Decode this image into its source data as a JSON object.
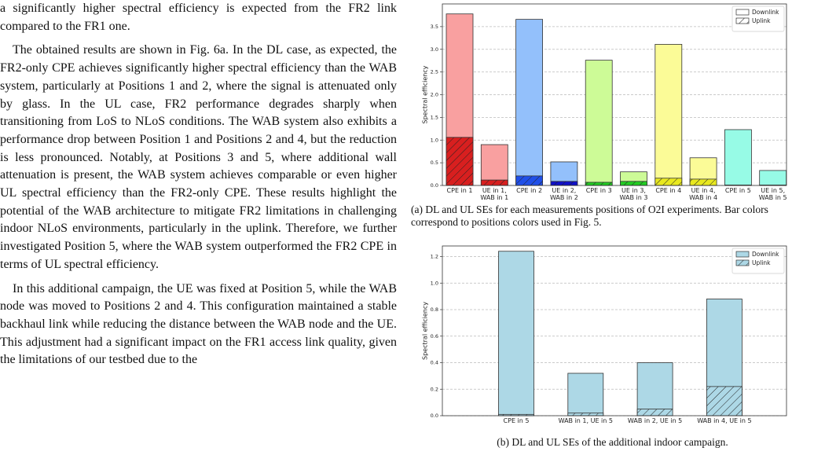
{
  "body": {
    "paragraphs": [
      "a significantly higher spectral efficiency is expected from the FR2 link compared to the FR1 one.",
      "The obtained results are shown in Fig. 6a. In the DL case, as expected, the FR2-only CPE achieves significantly higher spectral efficiency than the WAB system, particularly at Positions 1 and 2, where the signal is attenuated only by glass. In the UL case, FR2 performance degrades sharply when transitioning from LoS to NLoS conditions. The WAB system also exhibits a performance drop between Position 1 and Positions 2 and 4, but the reduction is less pronounced. Notably, at Positions 3 and 5, where additional wall attenuation is present, the WAB system achieves comparable or even higher UL spectral efficiency than the FR2-only CPE. These results highlight the potential of the WAB architecture to mitigate FR2 limitations in challenging indoor NLoS environments, particularly in the uplink. Therefore, we further investigated Position 5, where the WAB system outperformed the FR2 CPE in terms of UL spectral efficiency.",
      "In this additional campaign, the UE was fixed at Position 5, while the WAB node was moved to Positions 2 and 4. This configuration maintained a stable backhaul link while reducing the distance between the WAB node and the UE. This adjustment had a significant impact on the FR1 access link quality, given the limitations of our testbed due to the"
    ]
  },
  "chart_data": [
    {
      "type": "bar",
      "ylabel": "Spectral efficiency",
      "caption": "(a) DL and UL SEs for each measurements positions of O2I experiments. Bar colors correspond to positions colors used in Fig. 5.",
      "categories": [
        "CPE in 1",
        "UE in 1, WAB in 1",
        "CPE in 2",
        "UE in 2, WAB in 2",
        "CPE in 3",
        "UE in 3, WAB in 3",
        "CPE in 4",
        "UE in 4, WAB in 4",
        "CPE in 5",
        "UE in 5, WAB in 5"
      ],
      "series": [
        {
          "name": "Downlink",
          "colors": [
            "#f9a0a0",
            "#f9a0a0",
            "#93c0fb",
            "#93c0fb",
            "#cdfb97",
            "#cdfb97",
            "#fbfb97",
            "#fbfb97",
            "#97fbe6",
            "#97fbe6"
          ],
          "values": [
            3.78,
            0.9,
            3.66,
            0.52,
            2.76,
            0.3,
            3.11,
            0.61,
            1.23,
            0.33
          ]
        },
        {
          "name": "Uplink",
          "hatch": true,
          "colors": [
            "#d81f1f",
            "#d81f1f",
            "#1f4fe8",
            "#1010c8",
            "#22cc22",
            "#22cc22",
            "#e8e81f",
            "#e8e81f",
            "#22ccaa",
            "#22ccaa"
          ],
          "values": [
            1.06,
            0.12,
            0.21,
            0.09,
            0.07,
            0.09,
            0.16,
            0.14,
            0.01,
            0.01
          ]
        }
      ],
      "ylim": [
        0,
        4.0
      ],
      "yticks": [
        {
          "value": 0,
          "label": "0.0"
        },
        {
          "value": 0.5,
          "label": "0.5"
        },
        {
          "value": 1,
          "label": "1.0"
        },
        {
          "value": 1.5,
          "label": "1.5"
        },
        {
          "value": 2,
          "label": "2.0"
        },
        {
          "value": 2.5,
          "label": "2.5"
        },
        {
          "value": 3,
          "label": "3.0"
        },
        {
          "value": 3.5,
          "label": "3.5"
        }
      ],
      "grid": true,
      "legend": "upper right"
    },
    {
      "type": "bar",
      "ylabel": "Spectral efficiency",
      "caption": "(b) DL and UL SEs of the additional indoor campaign.",
      "categories": [
        "CPE in 5",
        "WAB in 1, UE in 5",
        "WAB in 2, UE in 5",
        "WAB in 4, UE in 5"
      ],
      "series": [
        {
          "name": "Downlink",
          "color": "#add8e6",
          "values": [
            1.24,
            0.32,
            0.4,
            0.88
          ]
        },
        {
          "name": "Uplink",
          "color": "#add8e6",
          "hatch": true,
          "values": [
            0.01,
            0.02,
            0.05,
            0.22
          ]
        }
      ],
      "ylim": [
        0,
        1.28
      ],
      "yticks": [
        {
          "value": 0,
          "label": "0.0"
        },
        {
          "value": 0.2,
          "label": "0.2"
        },
        {
          "value": 0.4,
          "label": "0.4"
        },
        {
          "value": 0.6,
          "label": "0.6"
        },
        {
          "value": 0.8,
          "label": "0.8"
        },
        {
          "value": 1,
          "label": "1.0"
        },
        {
          "value": 1.2,
          "label": "1.2"
        }
      ],
      "grid": true,
      "legend": "upper right"
    }
  ]
}
